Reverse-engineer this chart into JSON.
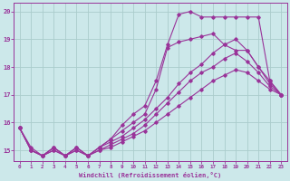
{
  "xlabel": "Windchill (Refroidissement éolien,°C)",
  "background_color": "#cce8ea",
  "grid_color": "#aacccc",
  "line_color": "#993399",
  "xlim": [
    -0.5,
    23.5
  ],
  "ylim": [
    14.6,
    20.3
  ],
  "yticks": [
    15,
    16,
    17,
    18,
    19,
    20
  ],
  "xticks": [
    0,
    1,
    2,
    3,
    4,
    5,
    6,
    7,
    8,
    9,
    10,
    11,
    12,
    13,
    14,
    15,
    16,
    17,
    18,
    19,
    20,
    21,
    22,
    23
  ],
  "series": [
    {
      "x": [
        0,
        1,
        2,
        3,
        4,
        5,
        6,
        7,
        8,
        9,
        10,
        11,
        12,
        13,
        14,
        15,
        16,
        17,
        18,
        19,
        20,
        21,
        22,
        23
      ],
      "y": [
        15.8,
        15.0,
        14.8,
        15.1,
        14.8,
        15.1,
        14.8,
        15.1,
        15.4,
        15.9,
        16.3,
        16.6,
        17.5,
        18.8,
        19.9,
        20.0,
        19.8,
        19.8,
        19.8,
        19.8,
        19.8,
        19.8,
        17.5,
        17.0
      ]
    },
    {
      "x": [
        0,
        1,
        2,
        3,
        4,
        5,
        6,
        7,
        8,
        9,
        10,
        11,
        12,
        13,
        14,
        15,
        16,
        17,
        18,
        19,
        20,
        21,
        22,
        23
      ],
      "y": [
        15.8,
        15.0,
        14.8,
        15.1,
        14.8,
        15.1,
        14.8,
        15.1,
        15.4,
        15.7,
        16.0,
        16.3,
        17.2,
        18.7,
        18.9,
        19.0,
        19.1,
        19.2,
        18.8,
        18.6,
        18.6,
        18.0,
        17.5,
        17.0
      ]
    },
    {
      "x": [
        0,
        1,
        2,
        3,
        4,
        5,
        6,
        7,
        8,
        9,
        10,
        11,
        12,
        13,
        14,
        15,
        16,
        17,
        18,
        19,
        20,
        21,
        22,
        23
      ],
      "y": [
        15.8,
        15.1,
        14.8,
        15.1,
        14.8,
        15.1,
        14.8,
        15.1,
        15.3,
        15.5,
        15.8,
        16.1,
        16.5,
        16.9,
        17.4,
        17.8,
        18.1,
        18.5,
        18.8,
        19.0,
        18.6,
        18.0,
        17.4,
        17.0
      ]
    },
    {
      "x": [
        0,
        1,
        2,
        3,
        4,
        5,
        6,
        7,
        8,
        9,
        10,
        11,
        12,
        13,
        14,
        15,
        16,
        17,
        18,
        19,
        20,
        21,
        22,
        23
      ],
      "y": [
        15.8,
        15.0,
        14.8,
        15.0,
        14.8,
        15.0,
        14.8,
        15.0,
        15.2,
        15.4,
        15.6,
        15.9,
        16.3,
        16.7,
        17.1,
        17.5,
        17.8,
        18.0,
        18.3,
        18.5,
        18.2,
        17.8,
        17.3,
        17.0
      ]
    },
    {
      "x": [
        0,
        1,
        2,
        3,
        4,
        5,
        6,
        7,
        8,
        9,
        10,
        11,
        12,
        13,
        14,
        15,
        16,
        17,
        18,
        19,
        20,
        21,
        22,
        23
      ],
      "y": [
        15.8,
        15.0,
        14.8,
        15.0,
        14.8,
        15.0,
        14.8,
        15.0,
        15.1,
        15.3,
        15.5,
        15.7,
        16.0,
        16.3,
        16.6,
        16.9,
        17.2,
        17.5,
        17.7,
        17.9,
        17.8,
        17.5,
        17.2,
        17.0
      ]
    }
  ]
}
